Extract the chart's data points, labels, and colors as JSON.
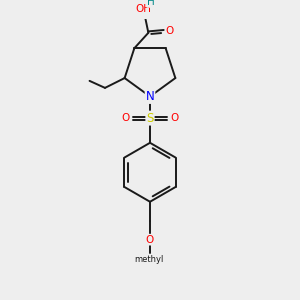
{
  "background_color": "#eeeeee",
  "bond_color": "#1a1a1a",
  "atom_colors": {
    "O": "#ff0000",
    "N": "#0000ff",
    "S": "#cccc00",
    "H": "#008888",
    "C": "#1a1a1a"
  },
  "figsize": [
    3.0,
    3.0
  ],
  "dpi": 100
}
